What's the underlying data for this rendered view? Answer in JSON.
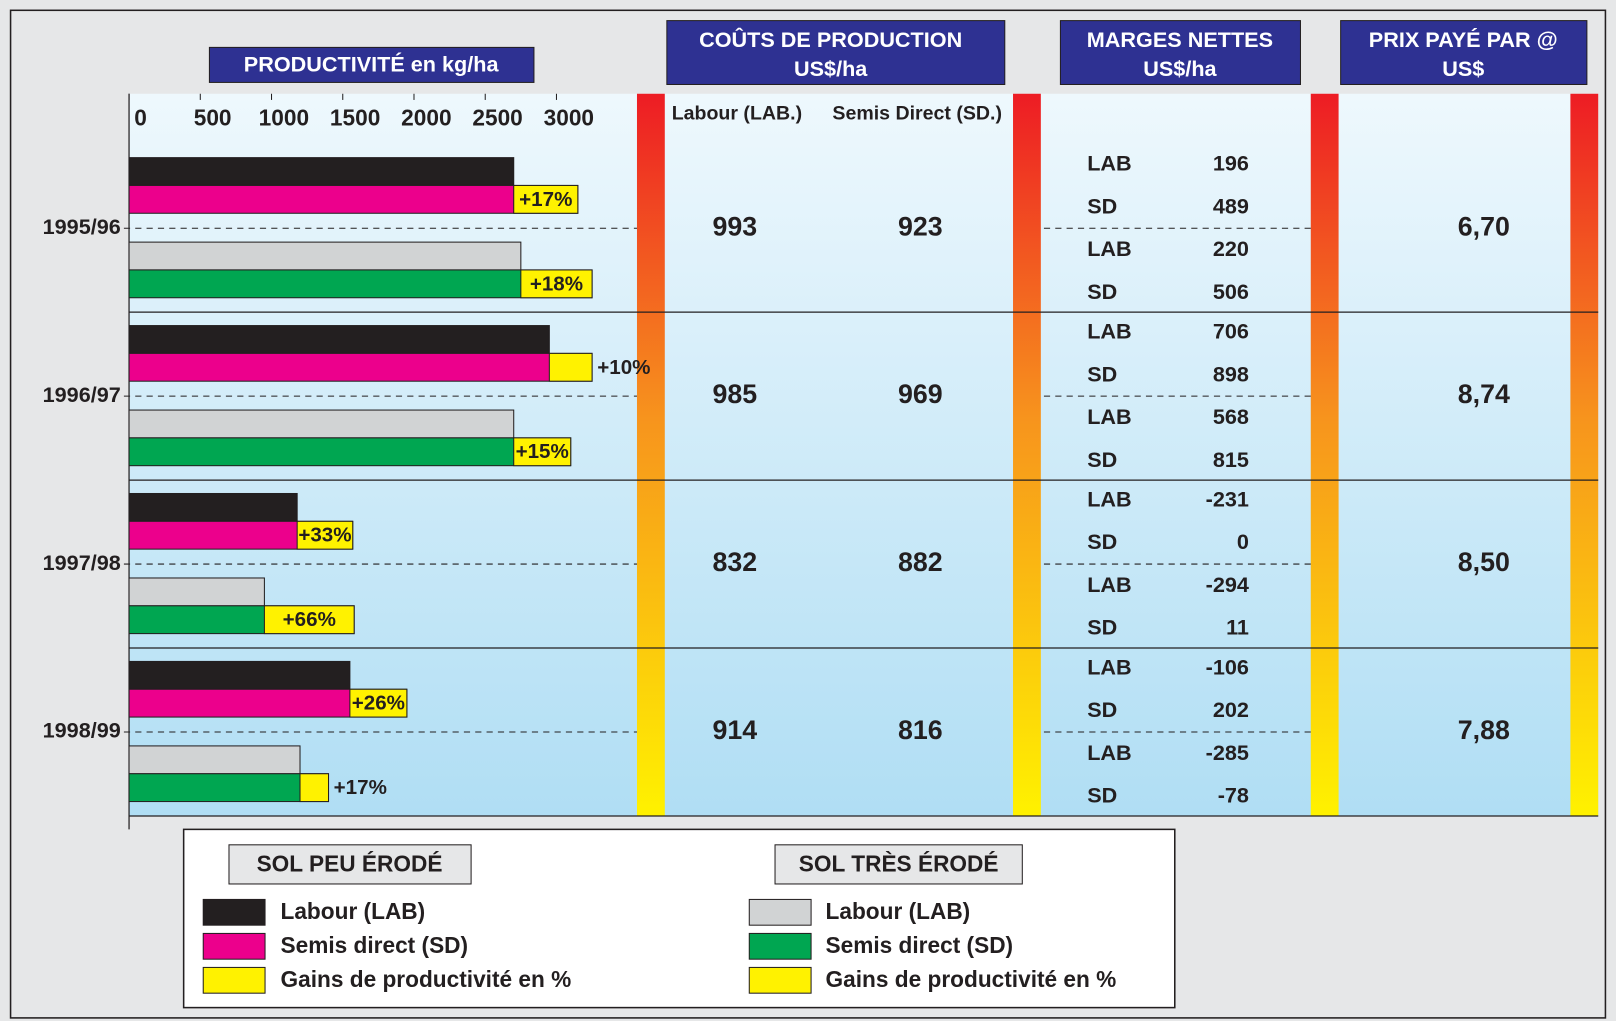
{
  "chart_data": {
    "type": "bar",
    "title": "PRODUCTIVITÉ en kg/ha",
    "categories": [
      "1995/96",
      "1996/97",
      "1997/98",
      "1998/99"
    ],
    "xlim": [
      0,
      3500
    ],
    "xticks": [
      0,
      500,
      1000,
      1500,
      2000,
      2500,
      3000
    ],
    "groups": [
      {
        "name": "SOL PEU ÉRODÉ",
        "series": [
          {
            "name": "Labour (LAB)",
            "color": "#231f20",
            "values": [
              2700,
              2950,
              1180,
              1550
            ]
          },
          {
            "name": "Semis direct (SD)",
            "color": "#ec008c",
            "values": [
              3150,
              3250,
              1570,
              1950
            ]
          }
        ],
        "gain": {
          "name": "Gains de productivité en %",
          "color": "#fff200",
          "labels": [
            "+17%",
            "+10%",
            "+33%",
            "+26%"
          ]
        }
      },
      {
        "name": "SOL TRÈS ÉRODÉ",
        "series": [
          {
            "name": "Labour (LAB)",
            "color": "#d1d3d4",
            "values": [
              2750,
              2700,
              950,
              1200
            ]
          },
          {
            "name": "Semis direct (SD)",
            "color": "#00a651",
            "values": [
              3250,
              3100,
              1580,
              1400
            ]
          }
        ],
        "gain": {
          "name": "Gains de productivité en %",
          "color": "#fff200",
          "labels": [
            "+18%",
            "+15%",
            "+66%",
            "+17%"
          ]
        }
      }
    ]
  },
  "costs": {
    "title": "COÛTS DE PRODUCTION",
    "unit": "US$/ha",
    "columns": [
      "Labour (LAB.)",
      "Semis Direct (SD.)"
    ],
    "rows": [
      [
        993,
        923
      ],
      [
        985,
        969
      ],
      [
        832,
        882
      ],
      [
        914,
        816
      ]
    ]
  },
  "margins": {
    "title": "MARGES NETTES",
    "unit": "US$/ha",
    "rows": [
      [
        {
          "label": "LAB",
          "value": 196
        },
        {
          "label": "SD",
          "value": 489
        },
        {
          "label": "LAB",
          "value": 220
        },
        {
          "label": "SD",
          "value": 506
        }
      ],
      [
        {
          "label": "LAB",
          "value": 706
        },
        {
          "label": "SD",
          "value": 898
        },
        {
          "label": "LAB",
          "value": 568
        },
        {
          "label": "SD",
          "value": 815
        }
      ],
      [
        {
          "label": "LAB",
          "value": -231
        },
        {
          "label": "SD",
          "value": 0
        },
        {
          "label": "LAB",
          "value": -294
        },
        {
          "label": "SD",
          "value": 11
        }
      ],
      [
        {
          "label": "LAB",
          "value": -106
        },
        {
          "label": "SD",
          "value": 202
        },
        {
          "label": "LAB",
          "value": -285
        },
        {
          "label": "SD",
          "value": -78
        }
      ]
    ]
  },
  "prices": {
    "title": "PRIX PAYÉ PAR @",
    "unit": "US$",
    "values": [
      "6,70",
      "8,74",
      "8,50",
      "7,88"
    ]
  }
}
